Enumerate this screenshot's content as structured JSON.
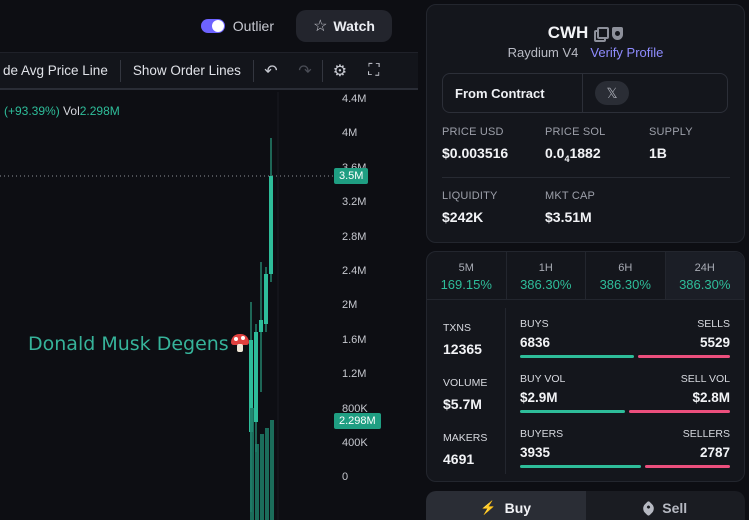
{
  "header": {
    "outlier_label": "Outlier",
    "outlier_on": true,
    "watch_label": "Watch",
    "icons": [
      "star-icon"
    ]
  },
  "toolbar": {
    "avg_price_label": "de Avg Price Line",
    "order_lines_label": "Show Order Lines",
    "icons": [
      "undo-icon",
      "redo-icon",
      "gear-icon",
      "fullscreen-icon"
    ]
  },
  "chart": {
    "legend_change": "(+93.39%)",
    "legend_vol_label": "Vol",
    "legend_vol_value": "2.298M",
    "watermark": "Donald Musk Degens",
    "price_ticks": [
      "4.4M",
      "4M",
      "3.6M",
      "3.2M",
      "2.8M",
      "2.4M",
      "2M",
      "1.6M",
      "1.2M",
      "800K",
      "400K",
      "0"
    ],
    "current_price_tag": "3.5M",
    "current_volume_tag": "2.298M",
    "colors": {
      "up": "#2ebd9a",
      "tag_bg": "#1f9e82",
      "grid": "#1a1c23"
    }
  },
  "token": {
    "symbol": "CWH",
    "dex": "Raydium V4",
    "verify_label": "Verify Profile",
    "contract_label": "From Contract",
    "social_icon": "x-logo-icon",
    "stats": [
      {
        "label": "PRICE USD",
        "value": "$0.003516"
      },
      {
        "label": "PRICE SOL",
        "value_main": "0.0",
        "value_sub": "4",
        "value_tail": "1882"
      },
      {
        "label": "SUPPLY",
        "value": "1B"
      },
      {
        "label": "LIQUIDITY",
        "value": "$242K"
      },
      {
        "label": "MKT CAP",
        "value": "$3.51M"
      }
    ]
  },
  "timeframes": [
    {
      "label": "5M",
      "change": "169.15%"
    },
    {
      "label": "1H",
      "change": "386.30%"
    },
    {
      "label": "6H",
      "change": "386.30%"
    },
    {
      "label": "24H",
      "change": "386.30%",
      "active": true
    }
  ],
  "metrics": {
    "txns": {
      "label": "TXNS",
      "value": "12365"
    },
    "volume": {
      "label": "VOLUME",
      "value": "$5.7M"
    },
    "makers": {
      "label": "MAKERS",
      "value": "4691"
    },
    "buys": {
      "left_label": "BUYS",
      "right_label": "SELLS",
      "left_value": "6836",
      "right_value": "5529",
      "left_share": 0.553
    },
    "vol": {
      "left_label": "BUY VOL",
      "right_label": "SELL VOL",
      "left_value": "$2.9M",
      "right_value": "$2.8M",
      "left_share": 0.51
    },
    "makers_split": {
      "left_label": "BUYERS",
      "right_label": "SELLERS",
      "left_value": "3935",
      "right_value": "2787",
      "left_share": 0.585
    }
  },
  "trade": {
    "buy_label": "Buy",
    "sell_label": "Sell"
  }
}
